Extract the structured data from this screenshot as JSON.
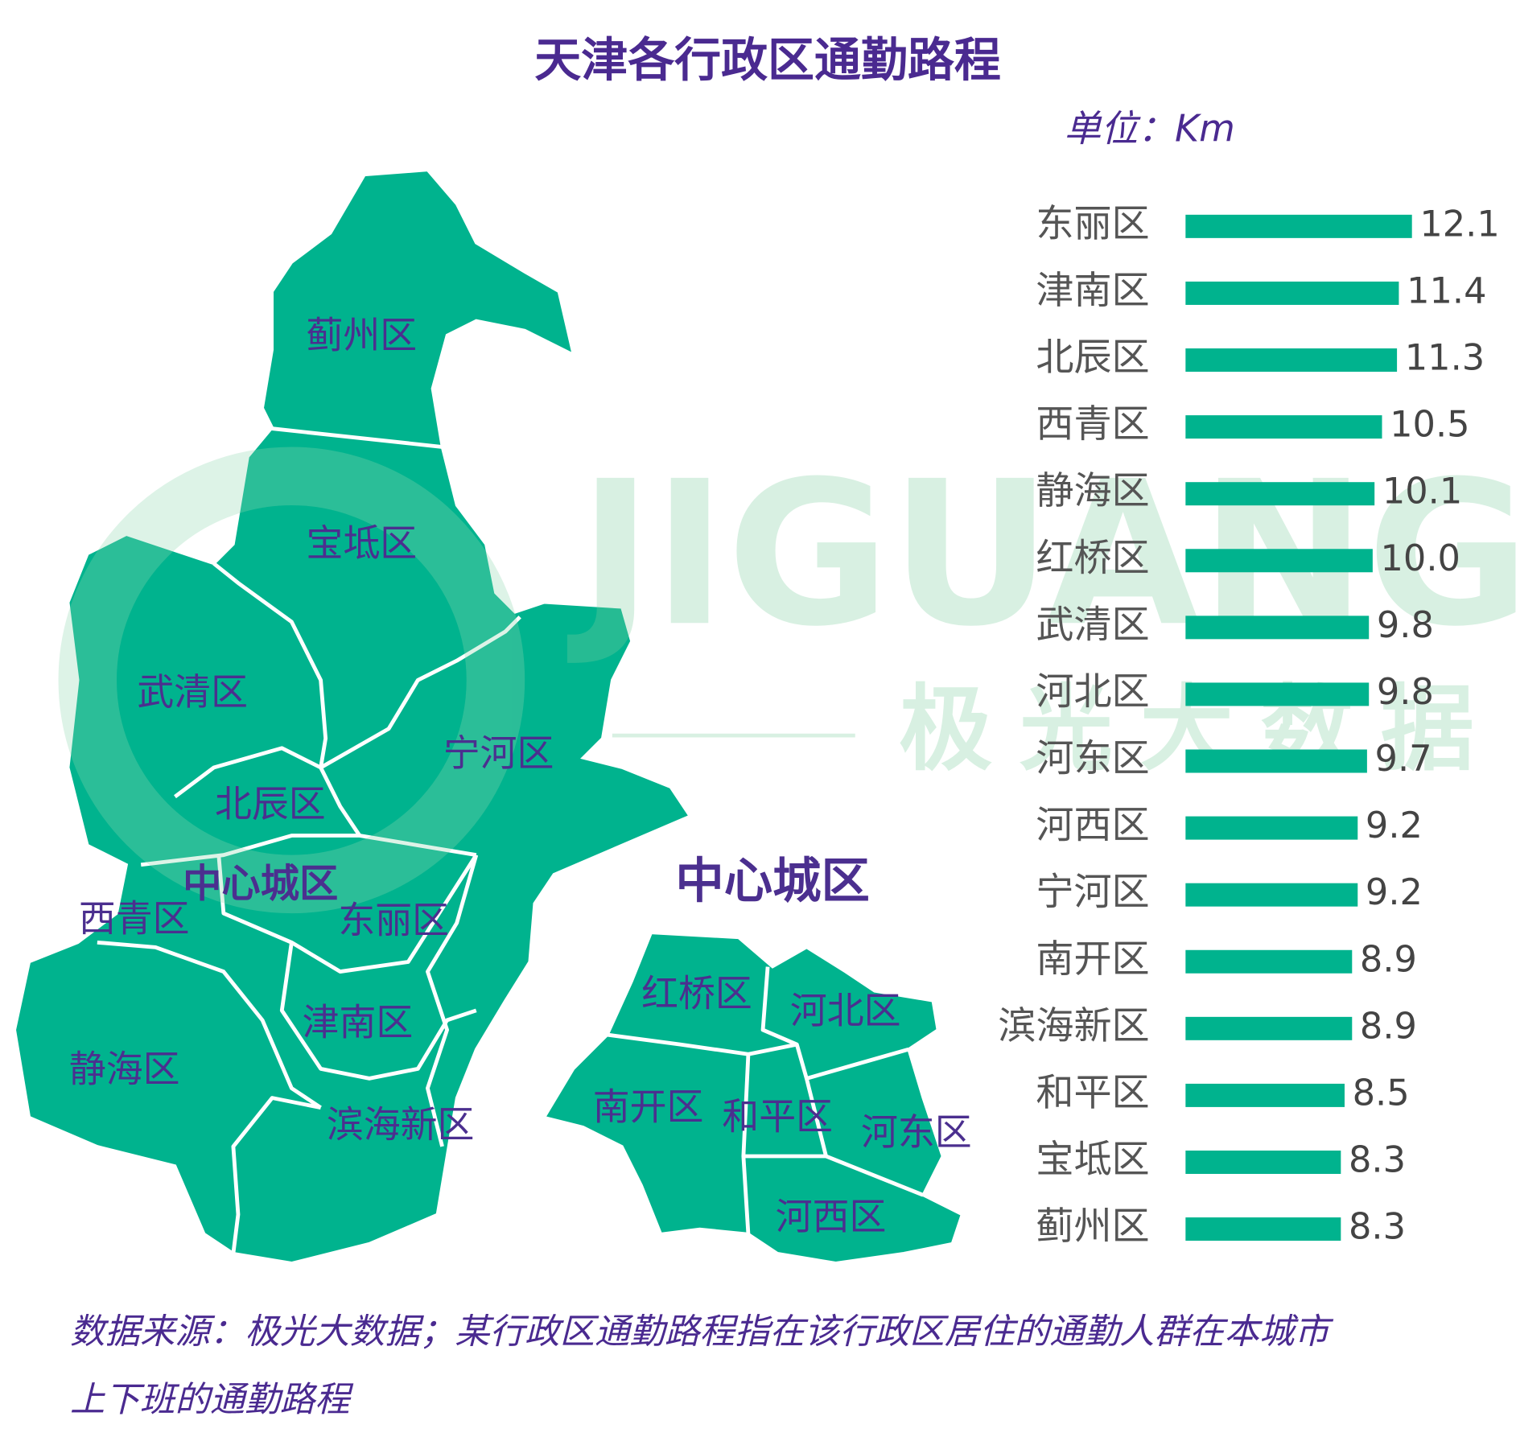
{
  "chart_data": {
    "type": "bar",
    "orientation": "horizontal",
    "title": "天津各行政区通勤路程",
    "unit_label": "单位：Km",
    "categories": [
      "东丽区",
      "津南区",
      "北辰区",
      "西青区",
      "静海区",
      "红桥区",
      "武清区",
      "河北区",
      "河东区",
      "河西区",
      "宁河区",
      "南开区",
      "滨海新区",
      "和平区",
      "宝坻区",
      "蓟州区"
    ],
    "values": [
      12.1,
      11.4,
      11.3,
      10.5,
      10.1,
      10.0,
      9.8,
      9.8,
      9.7,
      9.2,
      9.2,
      8.9,
      8.9,
      8.5,
      8.3,
      8.3
    ],
    "value_labels": [
      "12.1",
      "11.4",
      "11.3",
      "10.5",
      "10.1",
      "10.0",
      "9.8",
      "9.8",
      "9.7",
      "9.2",
      "9.2",
      "8.9",
      "8.9",
      "8.5",
      "8.3",
      "8.3"
    ],
    "color": "#00b38e",
    "source_lines": [
      "数据来源：极光大数据；某行政区通勤路程指在该行政区居住的通勤人群在本城市",
      "上下班的通勤路程"
    ]
  },
  "map": {
    "labels": [
      "蓟州区",
      "宝坻区",
      "武清区",
      "宁河区",
      "北辰区",
      "中心城区",
      "东丽区",
      "西青区",
      "津南区",
      "静海区",
      "滨海新区"
    ],
    "inset_title": "中心城区",
    "inset_labels": [
      "红桥区",
      "河北区",
      "南开区",
      "和平区",
      "河东区",
      "河西区"
    ]
  },
  "watermark": {
    "brand": "JIGUANG",
    "name": "极光大数据"
  }
}
